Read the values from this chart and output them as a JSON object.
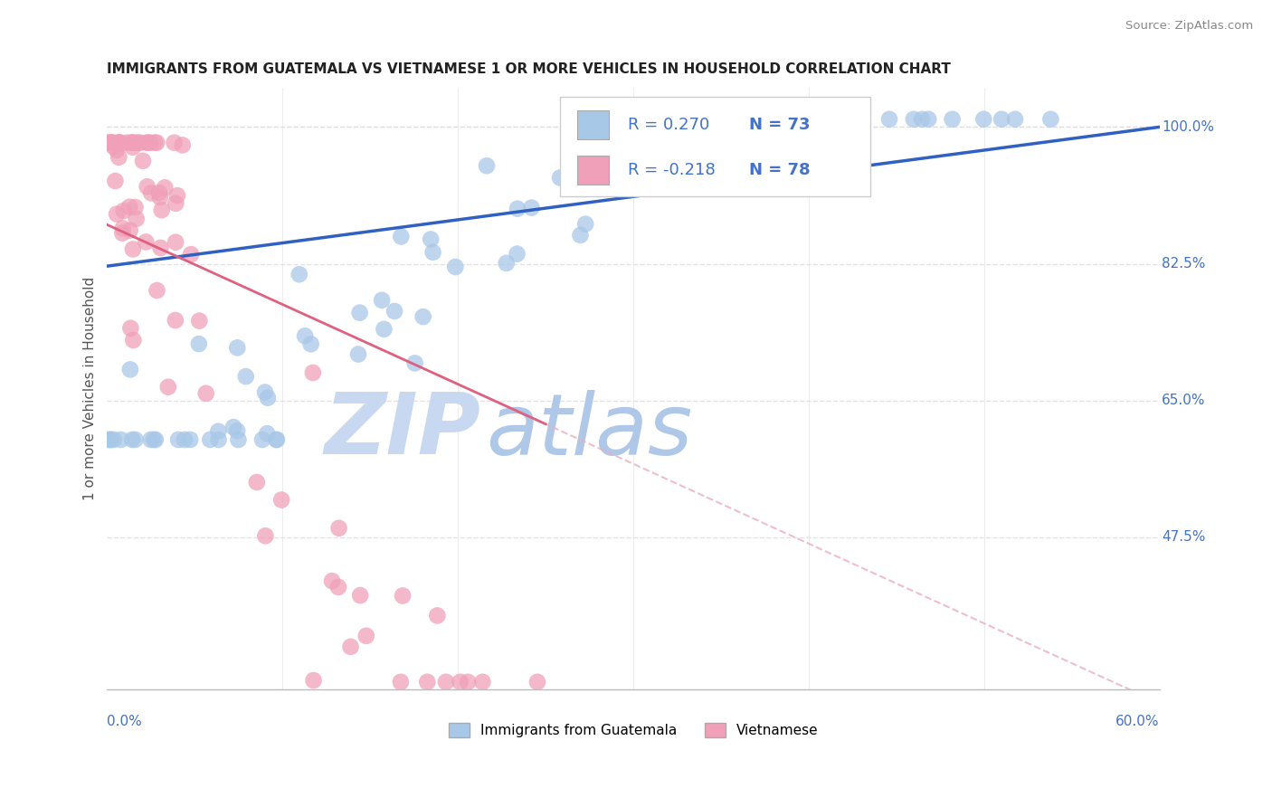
{
  "title": "IMMIGRANTS FROM GUATEMALA VS VIETNAMESE 1 OR MORE VEHICLES IN HOUSEHOLD CORRELATION CHART",
  "source": "Source: ZipAtlas.com",
  "ylabel": "1 or more Vehicles in Household",
  "xlim": [
    0.0,
    0.6
  ],
  "ylim": [
    0.28,
    1.05
  ],
  "ytick_positions": [
    0.475,
    0.65,
    0.825,
    1.0
  ],
  "ytick_labels": [
    "47.5%",
    "65.0%",
    "82.5%",
    "100.0%"
  ],
  "r_guatemala": 0.27,
  "n_guatemala": 73,
  "r_vietnamese": -0.218,
  "n_vietnamese": 78,
  "color_guatemala": "#a8c8e8",
  "color_vietnamese": "#f0a0b8",
  "color_line_guatemala": "#3060c0",
  "color_line_vietnamese": "#e06080",
  "color_yticks": "#4472c4",
  "color_xtick_ends": "#4472c4",
  "watermark_zip": "ZIP",
  "watermark_atlas": "atlas",
  "watermark_color_zip": "#c8d8f0",
  "watermark_color_atlas": "#b0c8e8",
  "background_color": "#ffffff",
  "grid_color": "#dddddd",
  "dashed_line_color": "#e8b0c0",
  "legend_r_color": "#4472c4",
  "legend_n_color": "#4472c4"
}
